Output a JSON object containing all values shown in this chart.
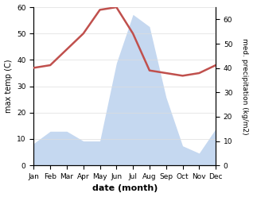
{
  "months": [
    "Jan",
    "Feb",
    "Mar",
    "Apr",
    "May",
    "Jun",
    "Jul",
    "Aug",
    "Sep",
    "Oct",
    "Nov",
    "Dec"
  ],
  "temperature": [
    37,
    38,
    44,
    50,
    59,
    60,
    50,
    36,
    35,
    34,
    35,
    38
  ],
  "precipitation": [
    9,
    14,
    14,
    10,
    10,
    42,
    62,
    57,
    28,
    8,
    5,
    15
  ],
  "temp_color": "#c0504d",
  "precip_fill_color": "#c5d8f0",
  "temp_ylim": [
    0,
    60
  ],
  "precip_ylim": [
    0,
    65
  ],
  "ylabel_left": "max temp (C)",
  "ylabel_right": "med. precipitation (kg/m2)",
  "xlabel": "date (month)",
  "left_yticks": [
    0,
    10,
    20,
    30,
    40,
    50,
    60
  ],
  "right_yticks": [
    0,
    10,
    20,
    30,
    40,
    50,
    60
  ],
  "figsize": [
    3.18,
    2.48
  ],
  "dpi": 100
}
